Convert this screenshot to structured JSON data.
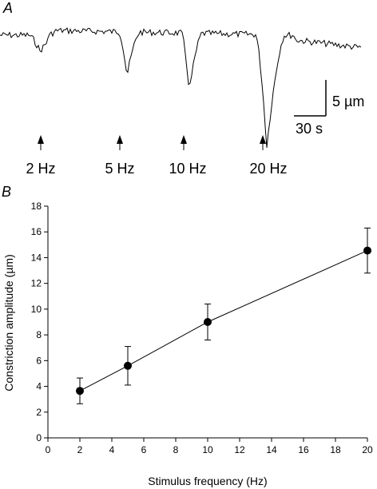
{
  "panel_a": {
    "label": "A",
    "scale_bar": {
      "vertical_label": "5 µm",
      "horizontal_label": "30 s"
    },
    "stimuli": [
      "2 Hz",
      "5 Hz",
      "10 Hz",
      "20 Hz"
    ]
  },
  "panel_b": {
    "label": "B"
  },
  "chart_data": {
    "type": "line",
    "title": "",
    "xlabel": "Stimulus frequency (Hz)",
    "ylabel": "Constriction amplitude (µm)",
    "xlim": [
      0,
      20
    ],
    "ylim": [
      0,
      18
    ],
    "x_ticks": [
      0,
      2,
      4,
      6,
      8,
      10,
      12,
      14,
      16,
      18,
      20
    ],
    "y_ticks": [
      0,
      2,
      4,
      6,
      8,
      10,
      12,
      14,
      16,
      18
    ],
    "grid": false,
    "series": [
      {
        "x": [
          2,
          5,
          10,
          20
        ],
        "y": [
          3.65,
          5.6,
          9.0,
          14.55
        ],
        "error": [
          1.0,
          1.5,
          1.4,
          1.75
        ]
      }
    ],
    "colors": {
      "marker": "#000000",
      "line": "#000000"
    }
  }
}
